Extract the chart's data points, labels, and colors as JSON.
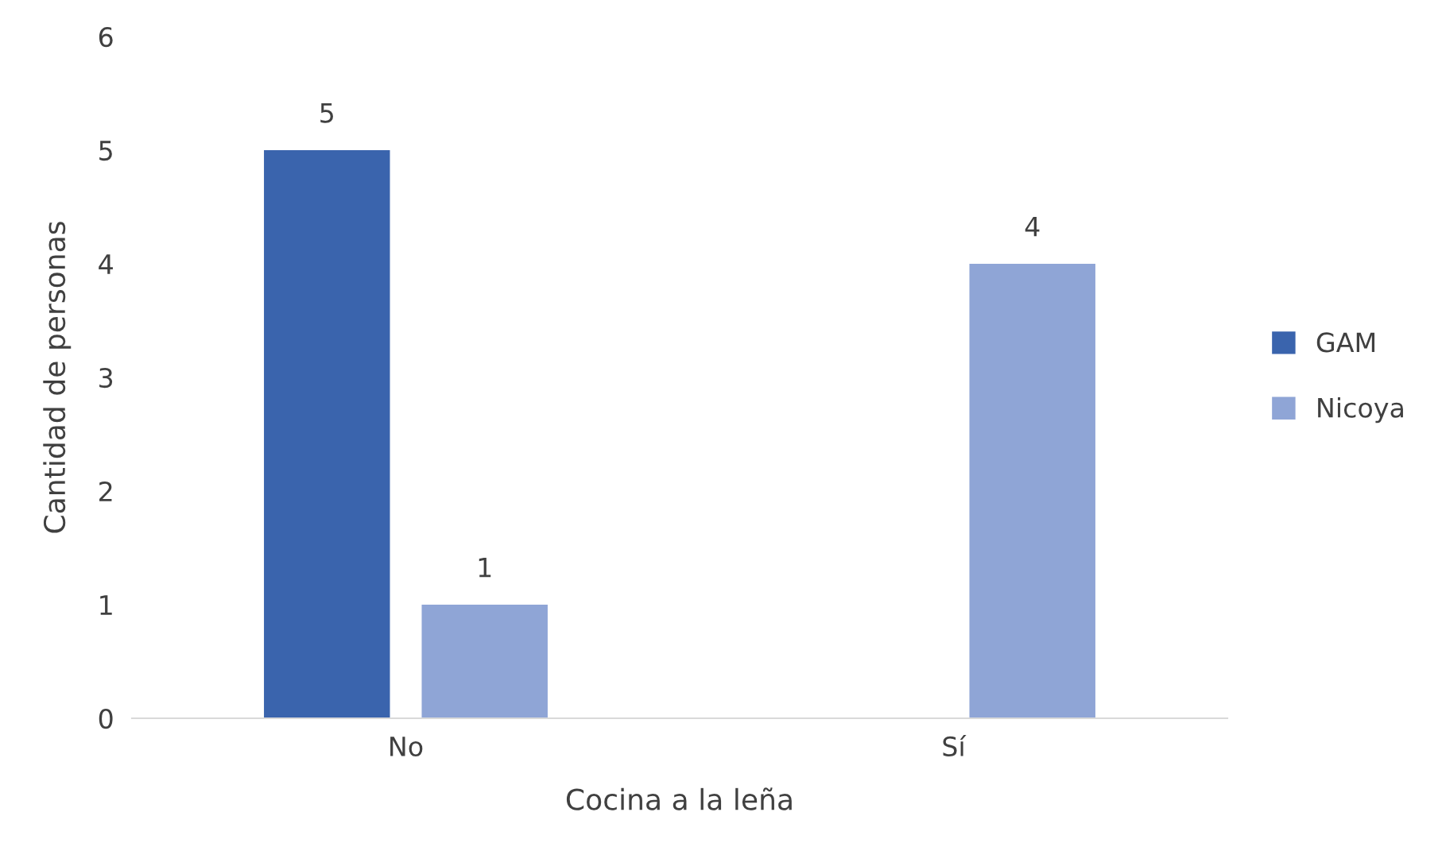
{
  "chart_data": {
    "type": "bar",
    "xlabel": "Cocina a la leña",
    "ylabel": "Cantidad de personas",
    "categories": [
      "No",
      "Sí"
    ],
    "series": [
      {
        "name": "GAM",
        "color": "#3a64ad",
        "values": [
          5,
          null
        ]
      },
      {
        "name": "Nicoya",
        "color": "#8fa5d6",
        "values": [
          1,
          4
        ]
      }
    ],
    "ylim": [
      0,
      6
    ],
    "yticks": [
      0,
      1,
      2,
      3,
      4,
      5,
      6
    ],
    "grid": false,
    "legend": "right",
    "data_labels": true
  }
}
